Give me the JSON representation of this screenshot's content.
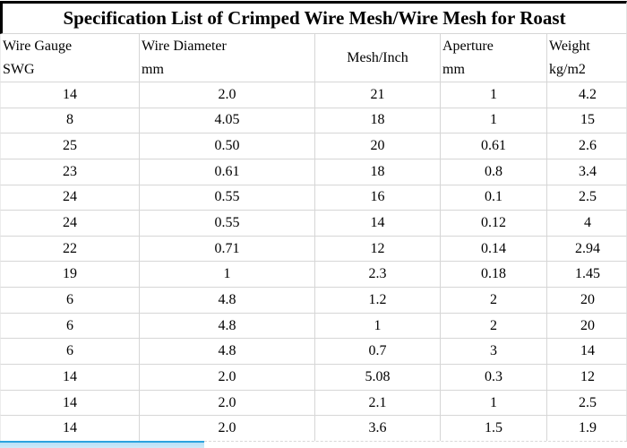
{
  "title": "Specification List of Crimped Wire Mesh/Wire Mesh for Roast",
  "table": {
    "columns": [
      {
        "line1": "Wire Gauge",
        "line2": "SWG",
        "align": "left"
      },
      {
        "line1": "Wire Diameter",
        "line2": "mm",
        "align": "left"
      },
      {
        "line1": "Mesh/Inch",
        "line2": "",
        "align": "center"
      },
      {
        "line1": "Aperture",
        "line2": "mm",
        "align": "left"
      },
      {
        "line1": "Weight",
        "line2": "kg/m2",
        "align": "left"
      }
    ],
    "rows": [
      [
        "14",
        "2.0",
        "21",
        "1",
        "4.2"
      ],
      [
        "8",
        "4.05",
        "18",
        "1",
        "15"
      ],
      [
        "25",
        "0.50",
        "20",
        "0.61",
        "2.6"
      ],
      [
        "23",
        "0.61",
        "18",
        "0.8",
        "3.4"
      ],
      [
        "24",
        "0.55",
        "16",
        "0.1",
        "2.5"
      ],
      [
        "24",
        "0.55",
        "14",
        "0.12",
        "4"
      ],
      [
        "22",
        "0.71",
        "12",
        "0.14",
        "2.94"
      ],
      [
        "19",
        "1",
        "2.3",
        "0.18",
        "1.45"
      ],
      [
        "6",
        "4.8",
        "1.2",
        "2",
        "20"
      ],
      [
        "6",
        "4.8",
        "1",
        "2",
        "20"
      ],
      [
        "6",
        "4.8",
        "0.7",
        "3",
        "14"
      ],
      [
        "14",
        "2.0",
        "5.08",
        "0.3",
        "12"
      ],
      [
        "14",
        "2.0",
        "2.1",
        "1",
        "2.5"
      ],
      [
        "14",
        "2.0",
        "3.6",
        "1.5",
        "1.9"
      ]
    ]
  },
  "colors": {
    "grid_line": "#d6d6d6",
    "title_border": "#000000",
    "scrollbar_thumb_edge": "#2ba3de",
    "scrollbar_thumb_fill": "#b9e0f6",
    "text": "#000000",
    "background": "#ffffff"
  }
}
